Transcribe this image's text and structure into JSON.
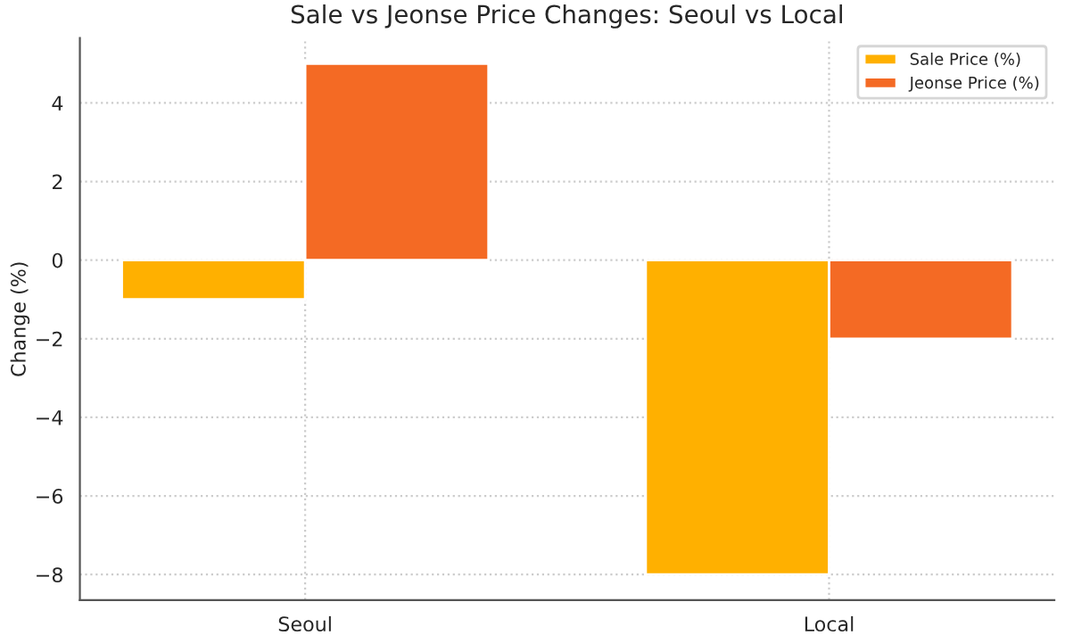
{
  "chart_data": {
    "type": "bar",
    "title": "Sale vs Jeonse Price Changes: Seoul vs Local",
    "ylabel": "Change (%)",
    "categories": [
      "Seoul",
      "Local"
    ],
    "series": [
      {
        "name": "Sale Price (%)",
        "color": "#ffb000",
        "values": [
          -1,
          -8
        ]
      },
      {
        "name": "Jeonse Price (%)",
        "color": "#f46a24",
        "values": [
          5,
          -2
        ]
      }
    ],
    "ylim": [
      -8.65,
      5.65
    ],
    "yticks": [
      {
        "value": -8,
        "label": "−8"
      },
      {
        "value": -6,
        "label": "−6"
      },
      {
        "value": -4,
        "label": "−4"
      },
      {
        "value": -2,
        "label": "−2"
      },
      0,
      2,
      4
    ],
    "grid": true,
    "legend": "top right"
  }
}
